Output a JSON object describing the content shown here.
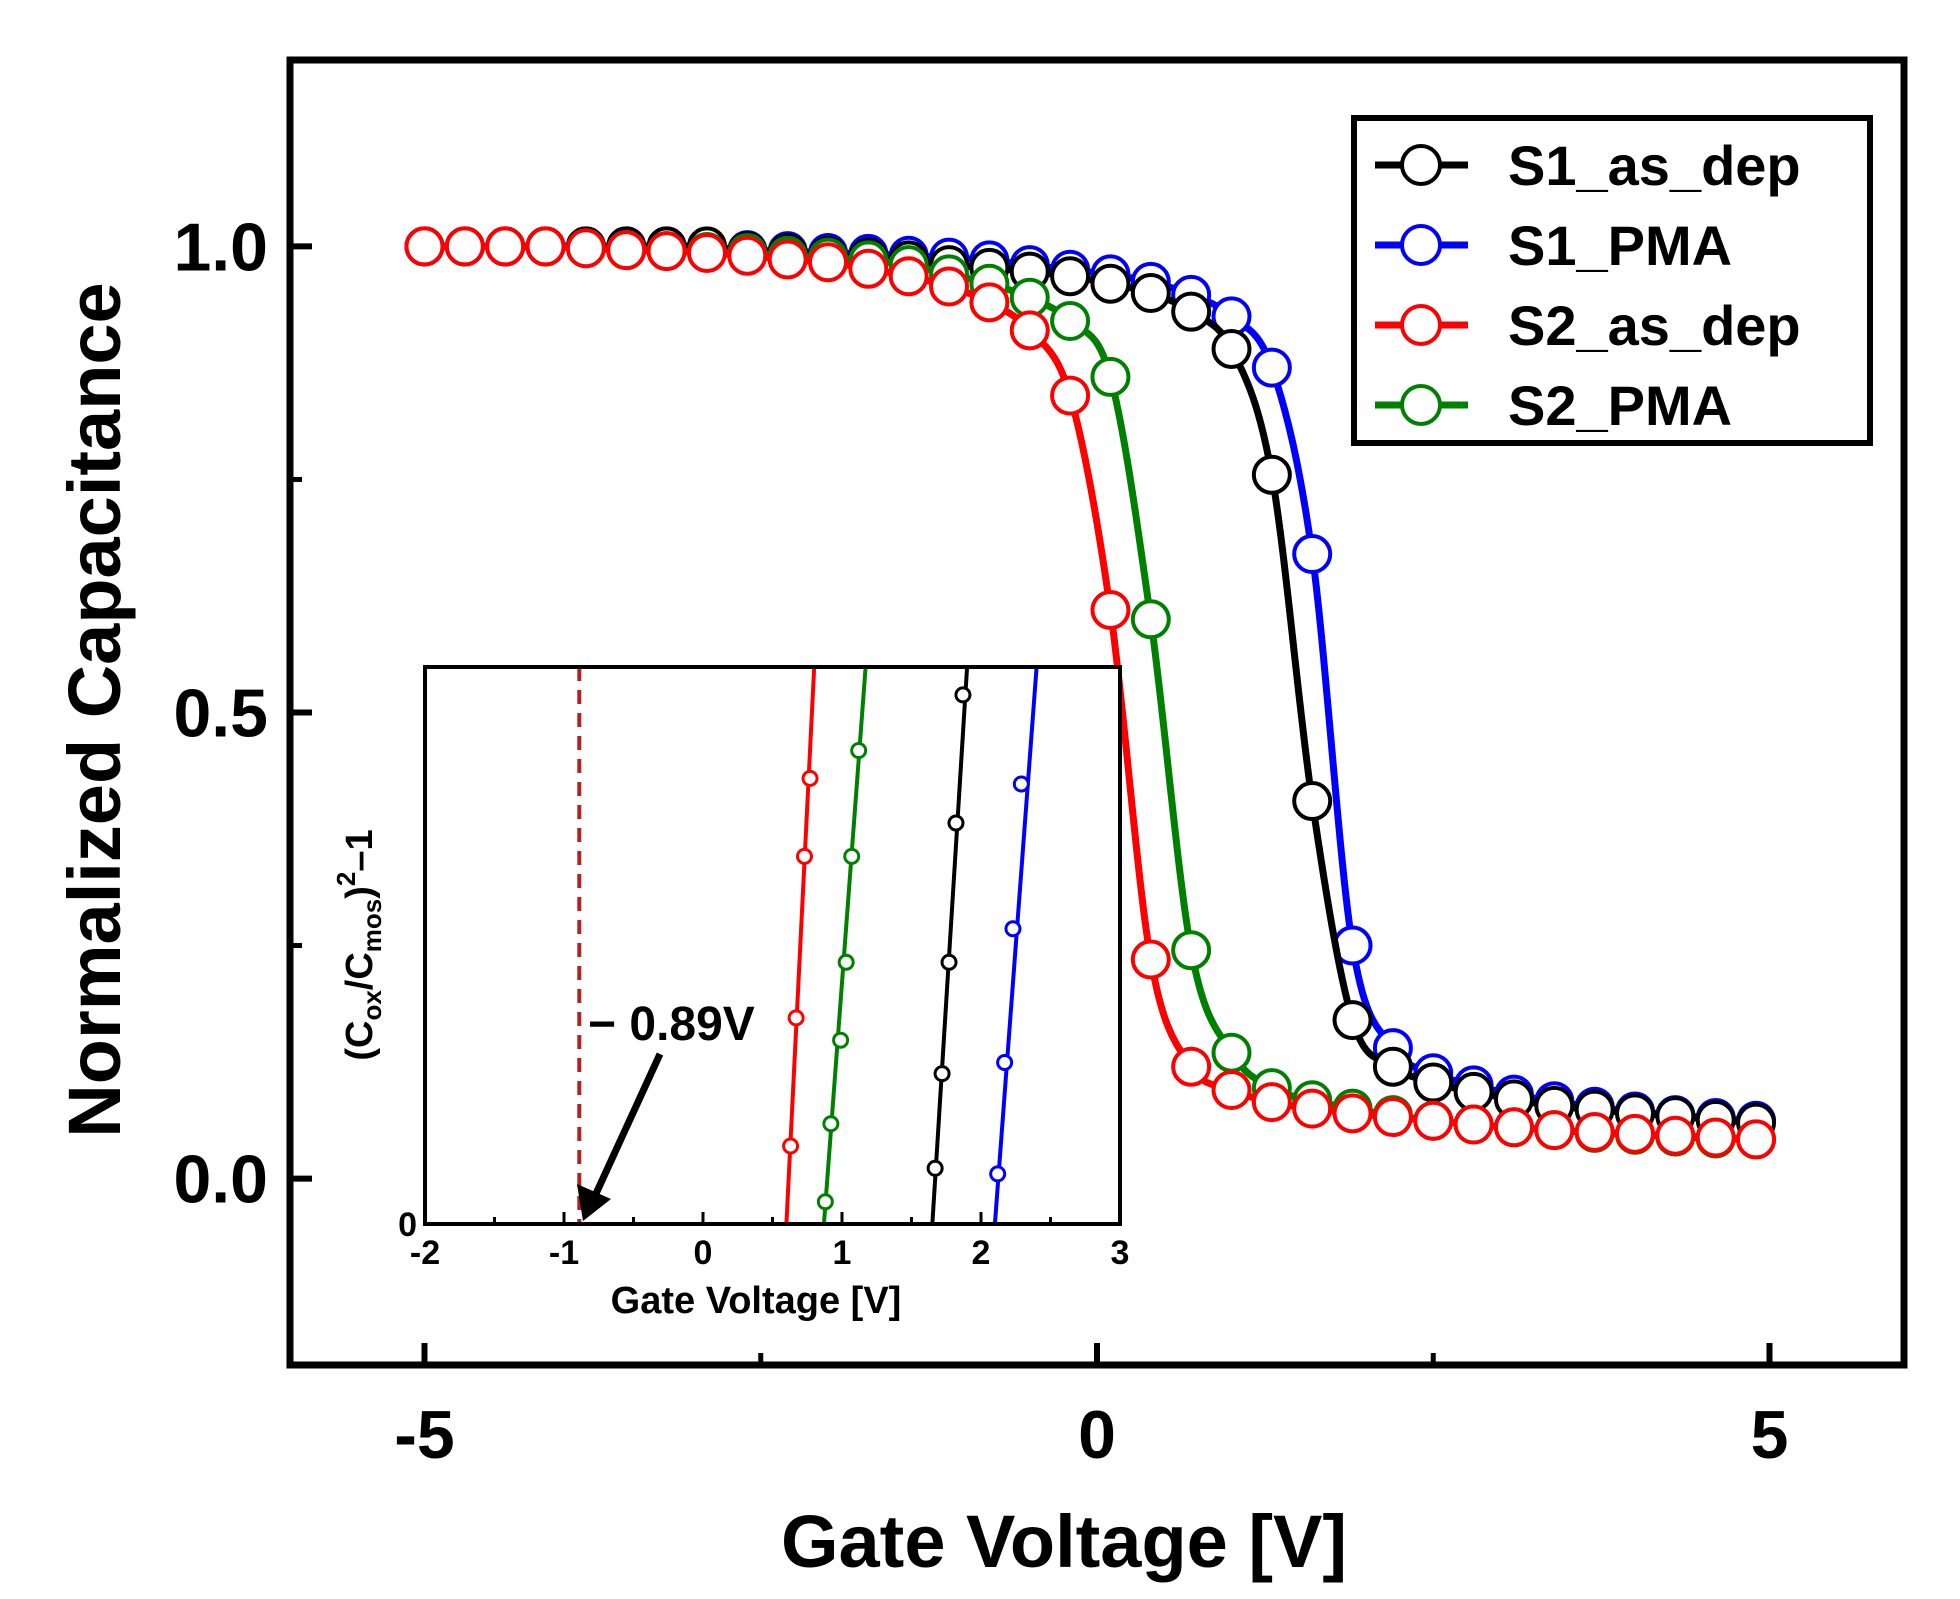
{
  "chart_data": [
    {
      "type": "line",
      "title": "",
      "xlabel": "Gate Voltage [V]",
      "ylabel": "Normalized Capacitance",
      "xlim": [
        -6.0,
        6.0
      ],
      "ylim": [
        -0.2,
        1.2
      ],
      "xticks": [
        -5,
        0,
        5
      ],
      "xtick_labels": [
        "-5",
        "0",
        "5"
      ],
      "yticks": [
        0.0,
        0.5,
        1.0
      ],
      "ytick_labels": [
        "0.0",
        "0.5",
        "1.0"
      ],
      "x_minor_ticks": [
        -2.5,
        2.5
      ],
      "y_minor_ticks": [
        0.25,
        0.75
      ],
      "legend": {
        "position": "top-right",
        "entries": [
          "S1_as_dep",
          "S1_PMA",
          "S2_as_dep",
          "S2_PMA"
        ]
      },
      "series": [
        {
          "name": "S1_as_dep",
          "color": "#000000",
          "x": [
            -5.0,
            -4.7,
            -4.4,
            -4.1,
            -3.8,
            -3.5,
            -3.2,
            -2.9,
            -2.6,
            -2.3,
            -2.0,
            -1.7,
            -1.4,
            -1.1,
            -0.8,
            -0.5,
            -0.2,
            0.1,
            0.4,
            0.7,
            1.0,
            1.3,
            1.6,
            1.9,
            2.2,
            2.5,
            2.8,
            3.1,
            3.4,
            3.7,
            4.0,
            4.3,
            4.6,
            4.9
          ],
          "y": [
            1.0,
            1.0,
            1.0,
            1.0,
            1.0,
            1.0,
            1.0,
            1.0,
            0.995,
            0.993,
            0.99,
            0.988,
            0.985,
            0.98,
            0.977,
            0.973,
            0.968,
            0.96,
            0.95,
            0.93,
            0.89,
            0.755,
            0.405,
            0.17,
            0.12,
            0.103,
            0.093,
            0.085,
            0.078,
            0.074,
            0.07,
            0.067,
            0.063,
            0.06
          ]
        },
        {
          "name": "S1_PMA",
          "color": "#0000ff",
          "x": [
            -5.0,
            -4.7,
            -4.4,
            -4.1,
            -3.8,
            -3.5,
            -3.2,
            -2.9,
            -2.6,
            -2.3,
            -2.0,
            -1.7,
            -1.4,
            -1.1,
            -0.8,
            -0.5,
            -0.2,
            0.1,
            0.4,
            0.7,
            1.0,
            1.3,
            1.6,
            1.9,
            2.2,
            2.5,
            2.8,
            3.1,
            3.4,
            3.7,
            4.0,
            4.3,
            4.6,
            4.9
          ],
          "y": [
            1.0,
            1.0,
            1.0,
            1.0,
            1.0,
            1.0,
            1.0,
            0.997,
            0.996,
            0.995,
            0.993,
            0.992,
            0.99,
            0.988,
            0.985,
            0.98,
            0.975,
            0.97,
            0.962,
            0.948,
            0.925,
            0.87,
            0.67,
            0.25,
            0.14,
            0.113,
            0.1,
            0.09,
            0.083,
            0.077,
            0.072,
            0.068,
            0.065,
            0.062
          ]
        },
        {
          "name": "S2_as_dep",
          "color": "#ff0000",
          "x": [
            -5.0,
            -4.7,
            -4.4,
            -4.1,
            -3.8,
            -3.5,
            -3.2,
            -2.9,
            -2.6,
            -2.3,
            -2.0,
            -1.7,
            -1.4,
            -1.1,
            -0.8,
            -0.5,
            -0.2,
            0.1,
            0.4,
            0.7,
            1.0,
            1.3,
            1.6,
            1.9,
            2.2,
            2.5,
            2.8,
            3.1,
            3.4,
            3.7,
            4.0,
            4.3,
            4.6,
            4.9
          ],
          "y": [
            1.0,
            1.0,
            1.0,
            1.0,
            0.998,
            0.996,
            0.995,
            0.993,
            0.99,
            0.986,
            0.983,
            0.976,
            0.968,
            0.957,
            0.94,
            0.91,
            0.84,
            0.61,
            0.235,
            0.12,
            0.095,
            0.082,
            0.075,
            0.07,
            0.066,
            0.062,
            0.058,
            0.055,
            0.052,
            0.05,
            0.048,
            0.046,
            0.044,
            0.042
          ]
        },
        {
          "name": "S2_PMA",
          "color": "#008000",
          "x": [
            -3.5,
            -3.2,
            -2.9,
            -2.6,
            -2.3,
            -2.0,
            -1.7,
            -1.4,
            -1.1,
            -0.8,
            -0.5,
            -0.2,
            0.1,
            0.4,
            0.7,
            1.0,
            1.3,
            1.6,
            1.9,
            2.2,
            2.5,
            2.8,
            3.1,
            3.4,
            3.7,
            4.0,
            4.3,
            4.6,
            4.9
          ],
          "y": [
            0.996,
            0.995,
            0.994,
            0.993,
            0.99,
            0.988,
            0.985,
            0.98,
            0.97,
            0.96,
            0.945,
            0.92,
            0.86,
            0.6,
            0.245,
            0.135,
            0.097,
            0.084,
            0.075,
            0.068,
            0.062,
            0.058,
            0.055,
            0.052,
            0.049,
            0.047,
            0.045,
            0.043,
            0.042
          ]
        }
      ]
    },
    {
      "type": "line",
      "title": "",
      "xlabel": "Gate Voltage [V]",
      "ylabel": "(C_ox/C_mos)^2-1",
      "ylabel_parts": {
        "open": "(C",
        "sub1": "ox",
        "mid": "/C",
        "sub2": "mos",
        "close": ")",
        "sup": "2",
        "tail": "–1"
      },
      "xlim": [
        -2,
        3
      ],
      "ylim": [
        0,
        1
      ],
      "xticks": [
        -2,
        -1,
        0,
        1,
        2,
        3
      ],
      "xtick_labels": [
        "-2",
        "-1",
        "0",
        "1",
        "2",
        "3"
      ],
      "yticks": [
        0
      ],
      "ytick_labels": [
        "0"
      ],
      "x_minor_ticks": [
        -1.5,
        -0.5,
        0.5,
        1.5,
        2.5
      ],
      "reference_line": {
        "x": -0.89,
        "color": "#b22222",
        "style": "dashed"
      },
      "annotation": {
        "text": "− 0.89V",
        "points_to_x": -0.89,
        "points_to_y": 0
      },
      "series": [
        {
          "name": "S2_as_dep",
          "color": "#ff0000",
          "line_x": [
            0.6,
            0.8
          ],
          "line_y": [
            0.0,
            1.0
          ],
          "x": [
            0.63,
            0.67,
            0.73,
            0.77
          ],
          "y": [
            0.14,
            0.37,
            0.66,
            0.8
          ]
        },
        {
          "name": "S2_PMA",
          "color": "#008000",
          "line_x": [
            0.87,
            1.17
          ],
          "line_y": [
            0.0,
            1.0
          ],
          "x": [
            0.88,
            0.92,
            0.99,
            1.03,
            1.07,
            1.12
          ],
          "y": [
            0.04,
            0.18,
            0.33,
            0.47,
            0.66,
            0.85
          ]
        },
        {
          "name": "S1_as_dep",
          "color": "#000000",
          "line_x": [
            1.65,
            1.9
          ],
          "line_y": [
            0.0,
            1.0
          ],
          "x": [
            1.67,
            1.72,
            1.77,
            1.82,
            1.87
          ],
          "y": [
            0.1,
            0.27,
            0.47,
            0.72,
            0.95
          ]
        },
        {
          "name": "S1_PMA",
          "color": "#0000ff",
          "line_x": [
            2.1,
            2.4
          ],
          "line_y": [
            0.0,
            1.0
          ],
          "x": [
            2.12,
            2.17,
            2.23,
            2.29
          ],
          "y": [
            0.09,
            0.29,
            0.53,
            0.79
          ]
        }
      ]
    }
  ]
}
